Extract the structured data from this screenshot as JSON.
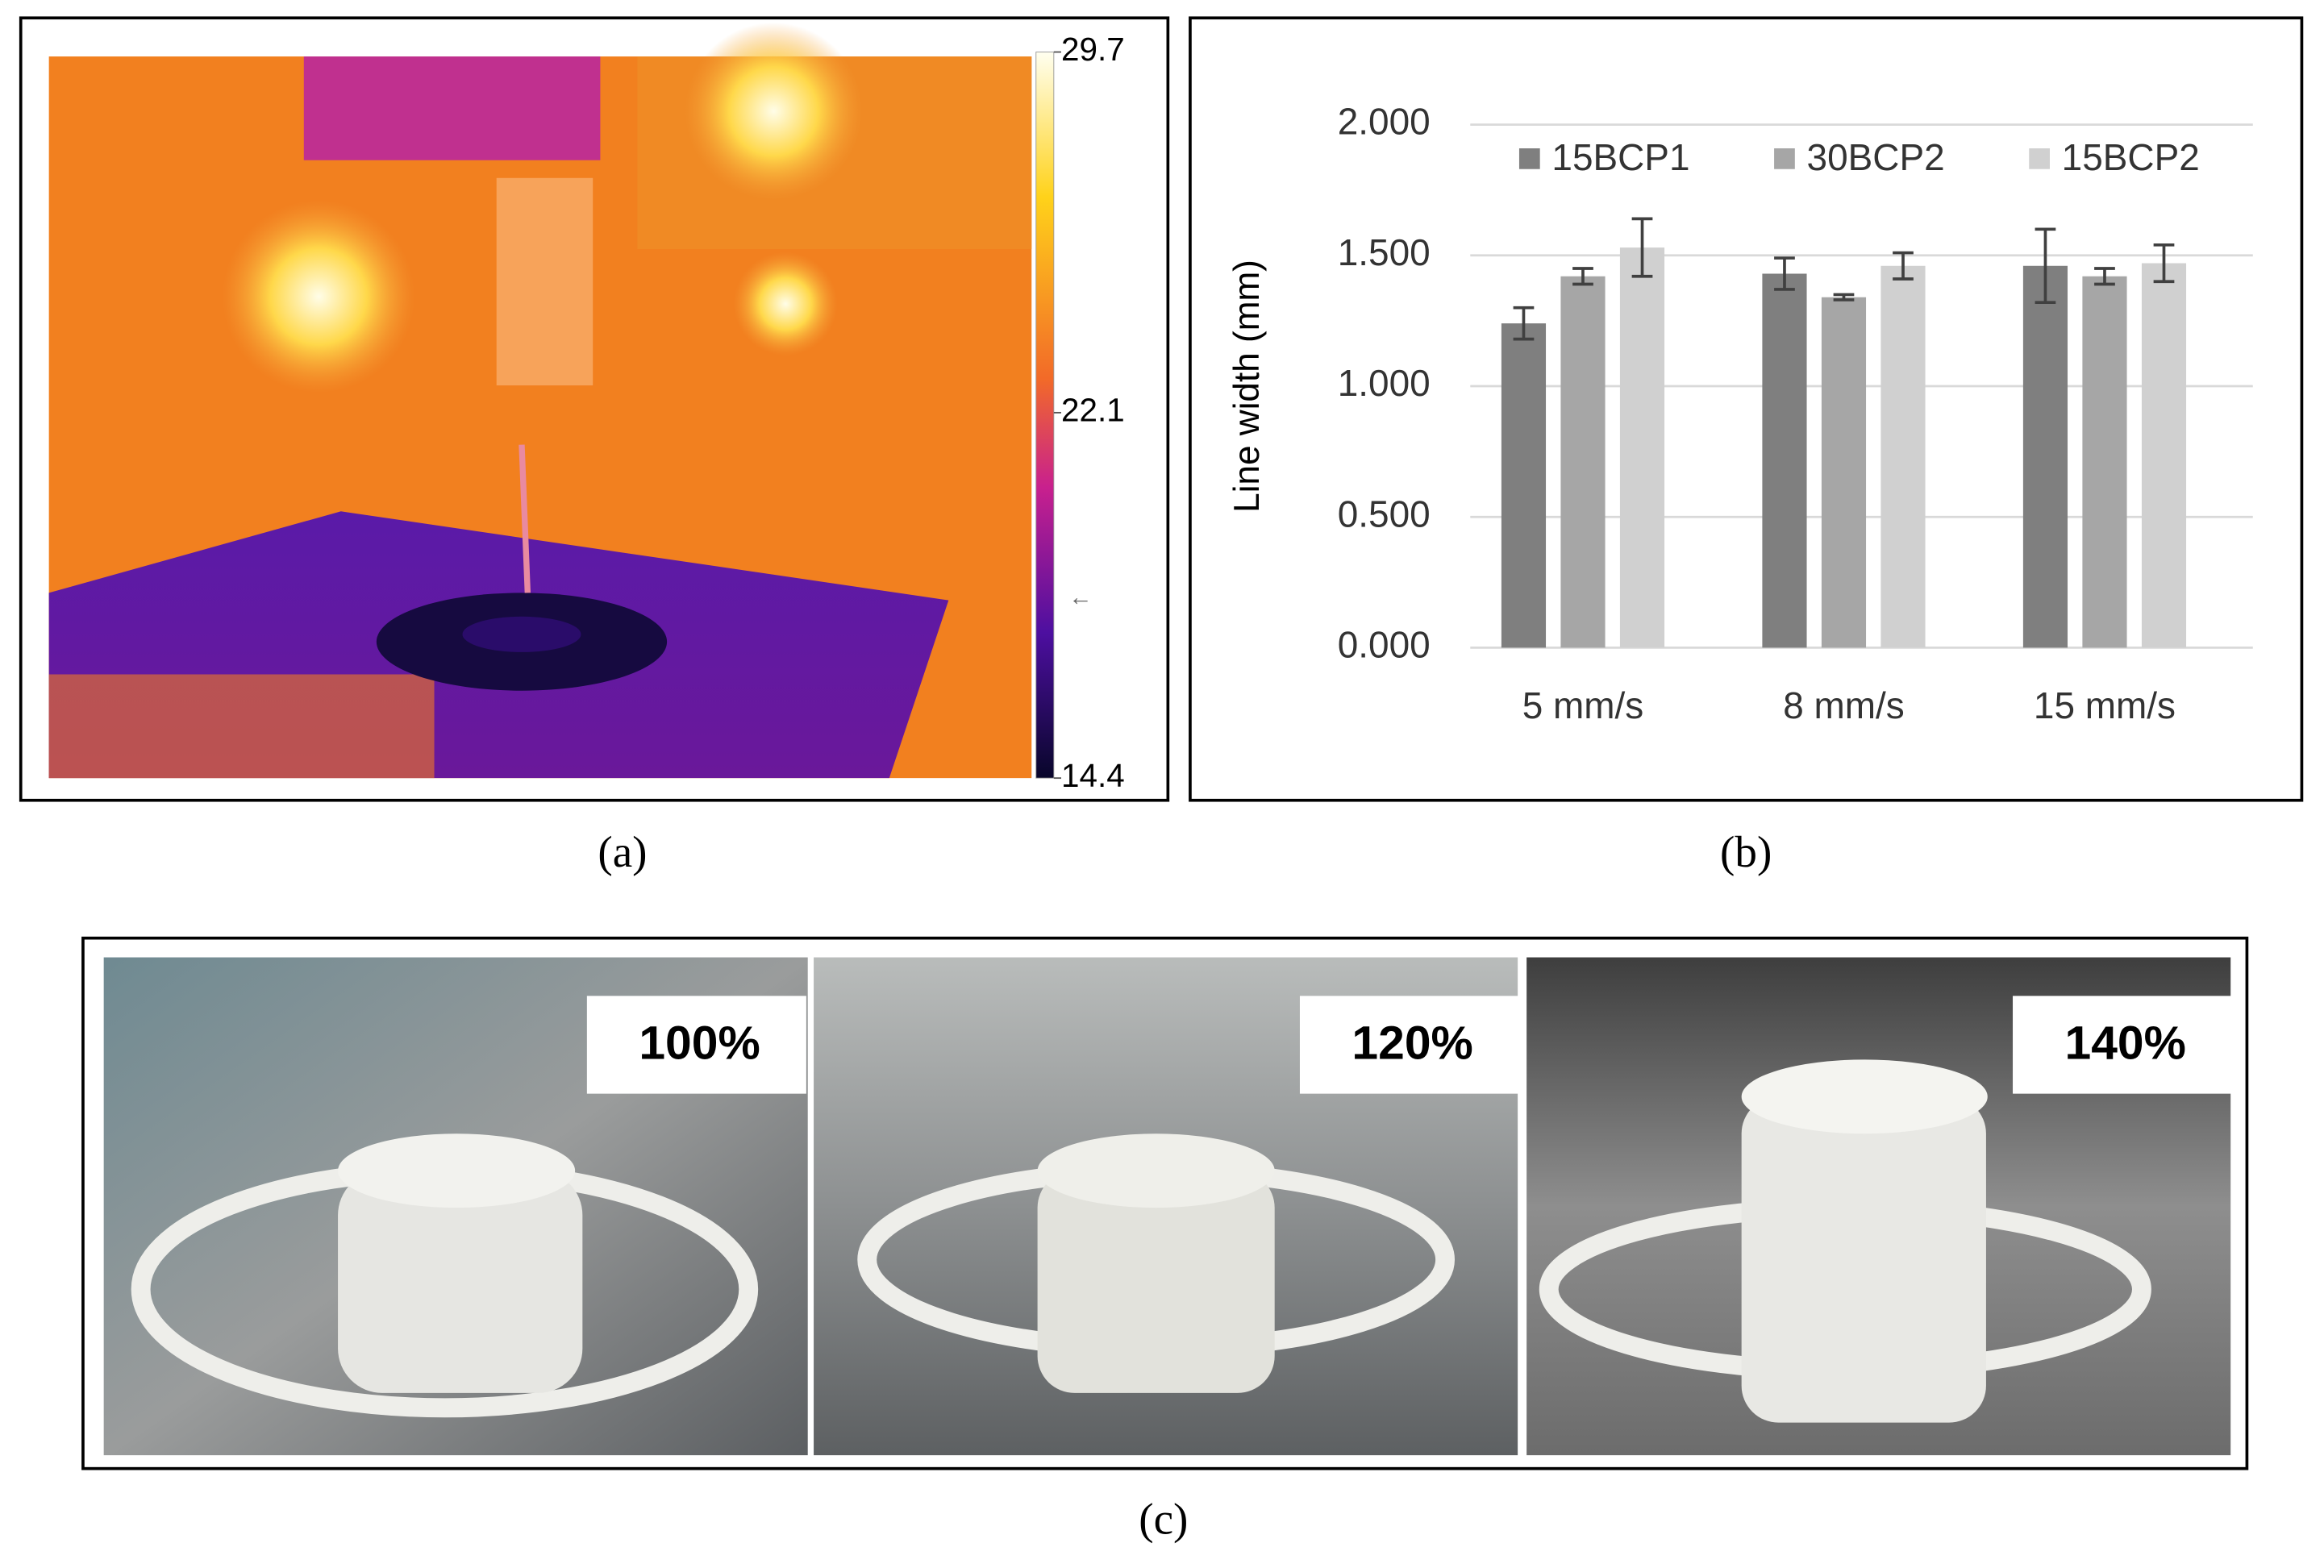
{
  "thermal": {
    "panel_label": "(a)",
    "colorbar": {
      "lim": [
        14.4,
        29.7
      ],
      "ticks": [
        29.7,
        22.1,
        14.4
      ]
    }
  },
  "chart_data": {
    "type": "bar",
    "panel_label": "(b)",
    "ylabel": "Line width  (mm)",
    "categories": [
      "5 mm/s",
      "8 mm/s",
      "15 mm/s"
    ],
    "series": [
      {
        "name": "15BCP1",
        "color": "#7f7f7f",
        "values": [
          1.24,
          1.43,
          1.46
        ],
        "errors": [
          0.06,
          0.06,
          0.14
        ]
      },
      {
        "name": "30BCP2",
        "color": "#a6a6a6",
        "values": [
          1.42,
          1.34,
          1.42
        ],
        "errors": [
          0.03,
          0.01,
          0.03
        ]
      },
      {
        "name": "15BCP2",
        "color": "#d0d0d0",
        "values": [
          1.53,
          1.46,
          1.47
        ],
        "errors": [
          0.11,
          0.05,
          0.07
        ]
      }
    ],
    "ylim": [
      0,
      2
    ],
    "yticks": [
      {
        "value": 0,
        "label": "0.000"
      },
      {
        "value": 0.5,
        "label": "0.500"
      },
      {
        "value": 1,
        "label": "1.000"
      },
      {
        "value": 1.5,
        "label": "1.500"
      },
      {
        "value": 2,
        "label": "2.000"
      }
    ],
    "grid": true,
    "legend": "top"
  },
  "photos": {
    "panel_label": "(c)",
    "labels": [
      "100%",
      "120%",
      "140%"
    ]
  }
}
